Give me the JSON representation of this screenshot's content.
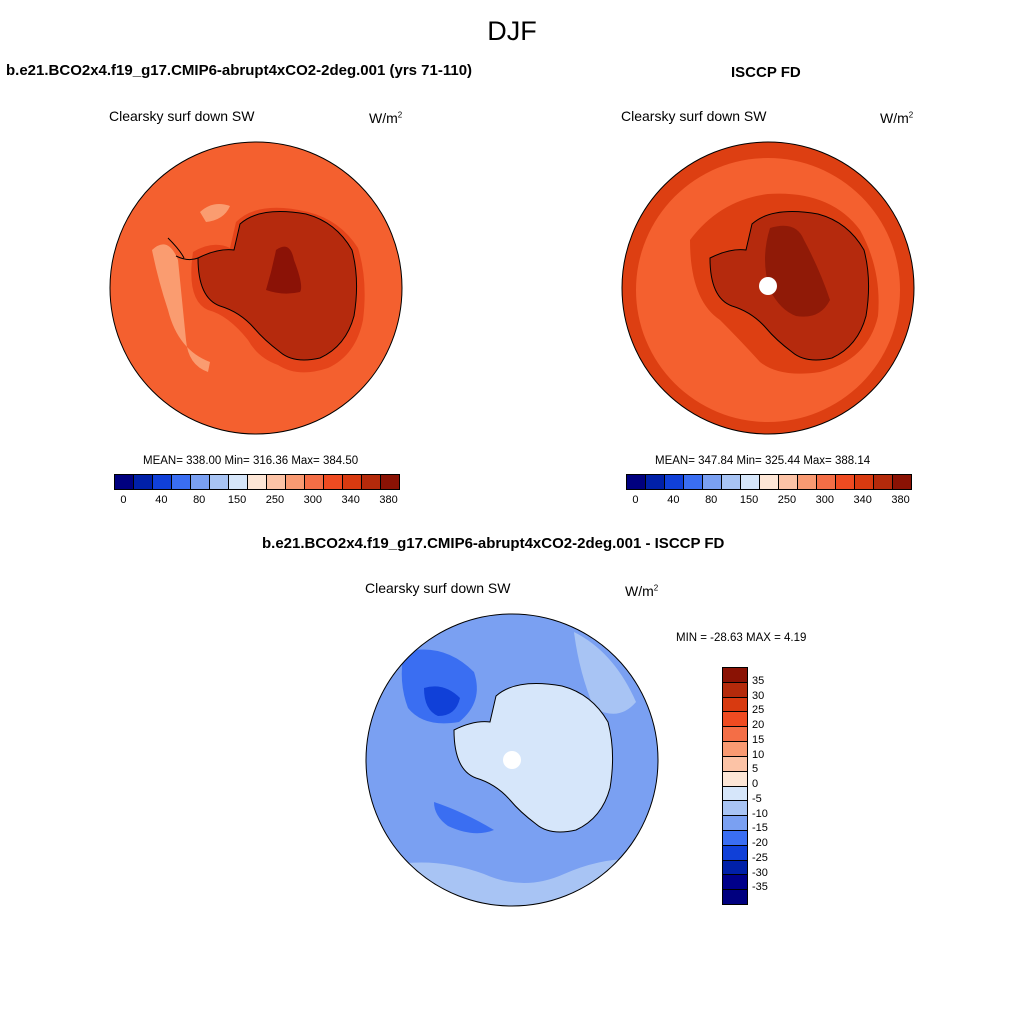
{
  "season": "DJF",
  "panels": [
    {
      "title": "b.e21.BCO2x4.f19_g17.CMIP6-abrupt4xCO2-2deg.001 (yrs 71-110)",
      "variable": "Clearsky surf down SW",
      "units": "W/m",
      "units_sup": "2",
      "stats_text": "MEAN= 338.00  Min= 316.36  Max= 384.50"
    },
    {
      "title": "ISCCP FD",
      "variable": "Clearsky surf down SW",
      "units": "W/m",
      "units_sup": "2",
      "stats_text": "MEAN= 347.84  Min= 325.44  Max= 388.14"
    },
    {
      "title": "b.e21.BCO2x4.f19_g17.CMIP6-abrupt4xCO2-2deg.001 - ISCCP FD",
      "variable": "Clearsky surf down SW",
      "units": "W/m",
      "units_sup": "2",
      "stats_text": "MIN = -28.63 MAX =   4.19"
    }
  ],
  "field_colorbar": {
    "colors": [
      "#00007f",
      "#0020a8",
      "#1040d8",
      "#3a6ef2",
      "#7aa0f2",
      "#a8c4f4",
      "#d6e6fa",
      "#fde6d6",
      "#fcc3a6",
      "#f99a72",
      "#f46e46",
      "#ef4b21",
      "#d83a10",
      "#b42a0b",
      "#8a1204"
    ],
    "tick_labels": [
      "0",
      "40",
      "80",
      "150",
      "250",
      "300",
      "340",
      "380"
    ]
  },
  "diff_colorbar": {
    "colors_top_to_bottom": [
      "#8a1204",
      "#b42a0b",
      "#d83a10",
      "#ef4b21",
      "#f46e46",
      "#f99a72",
      "#fcc3a6",
      "#fde6d6",
      "#d6e6fa",
      "#a8c4f4",
      "#7aa0f2",
      "#3a6ef2",
      "#1040d8",
      "#0020a8",
      "#00008a",
      "#00007f"
    ],
    "tick_labels": [
      "35",
      "30",
      "25",
      "20",
      "15",
      "10",
      "5",
      "0",
      "-5",
      "-10",
      "-15",
      "-20",
      "-25",
      "-30",
      "-35"
    ]
  },
  "map_colors": {
    "model_ocean": "#f4602f",
    "model_coast_band": "#e5441a",
    "model_interior": "#b52a0d",
    "model_core": "#8b1206",
    "model_light_patch": "#fa9c70",
    "obs_outer_ring": "#dd3f12",
    "obs_ocean": "#f4602f",
    "obs_interior": "#b52a0d",
    "obs_core": "#901a07",
    "diff_ocean": "#7aa0f2",
    "diff_light": "#a8c4f4",
    "diff_dark": "#3a6ef2",
    "diff_darker": "#1040d8",
    "diff_land": "#d6e6fa"
  }
}
